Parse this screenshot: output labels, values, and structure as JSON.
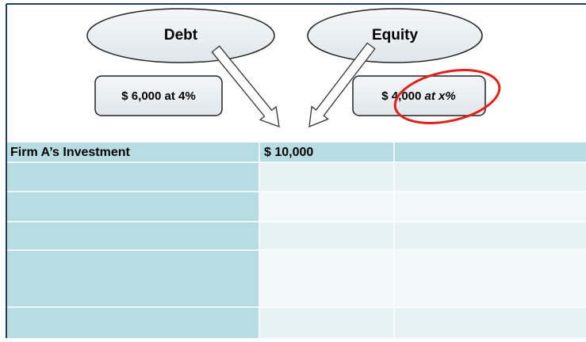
{
  "nodes": [
    {
      "label": "Debt"
    },
    {
      "label": "Equity"
    }
  ],
  "boxes": [
    {
      "label": "$ 6,000 at 4%"
    },
    {
      "amount": "$ 4,000",
      "rate": "at x%"
    }
  ],
  "table": {
    "header": [
      "Firm A’s Investment",
      "$ 10,000"
    ]
  }
}
